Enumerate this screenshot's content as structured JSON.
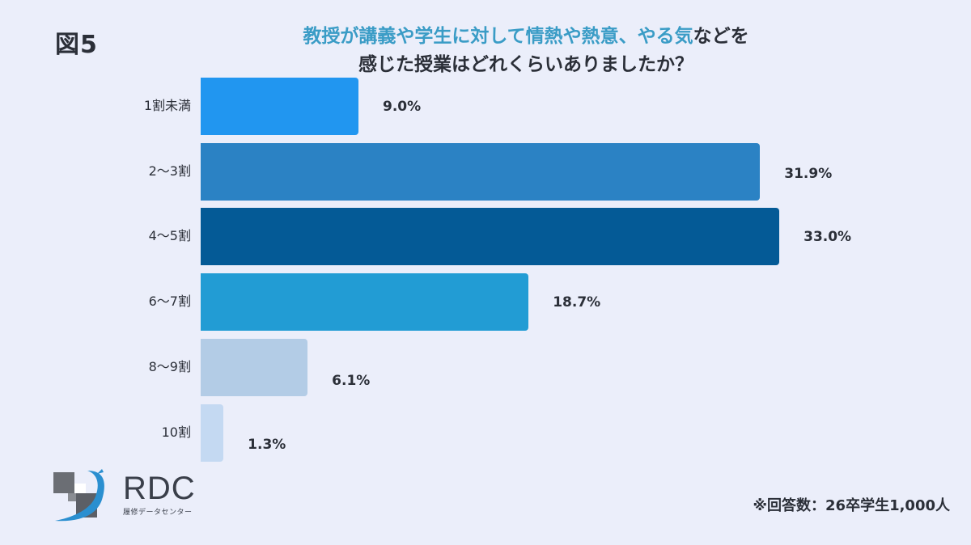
{
  "figure_label": "図5",
  "title": {
    "line1_highlight": "教授が講義や学生に対して情熱や熱意、やる気",
    "line1_rest": "などを",
    "line2": "感じた授業はどれくらいありましたか？"
  },
  "logo": {
    "text": "RDC",
    "subtitle": "履修データセンター"
  },
  "footnote": "※回答数：26卒学生1,000人",
  "colors": {
    "background": "#ebeefa",
    "title_highlight": "#3a9cc6",
    "text": "#2b2f38"
  },
  "chart_data": {
    "type": "bar",
    "orientation": "horizontal",
    "title": "教授が講義や学生に対して情熱や熱意、やる気などを感じた授業はどれくらいありましたか？",
    "categories": [
      "1割未満",
      "2〜3割",
      "4〜5割",
      "6〜7割",
      "8〜9割",
      "10割"
    ],
    "values": [
      9.0,
      31.9,
      33.0,
      18.7,
      6.1,
      1.3
    ],
    "value_labels": [
      "9.0%",
      "31.9%",
      "33.0%",
      "18.7%",
      "6.1%",
      "1.3%"
    ],
    "bar_colors": [
      "#2196f0",
      "#2b82c4",
      "#045a96",
      "#229cd4",
      "#b3cce6",
      "#c4d9f2"
    ],
    "unit": "%",
    "xlabel": "",
    "ylabel": "",
    "grid": false,
    "legend": null,
    "note": "※回答数：26卒学生1,000人"
  }
}
